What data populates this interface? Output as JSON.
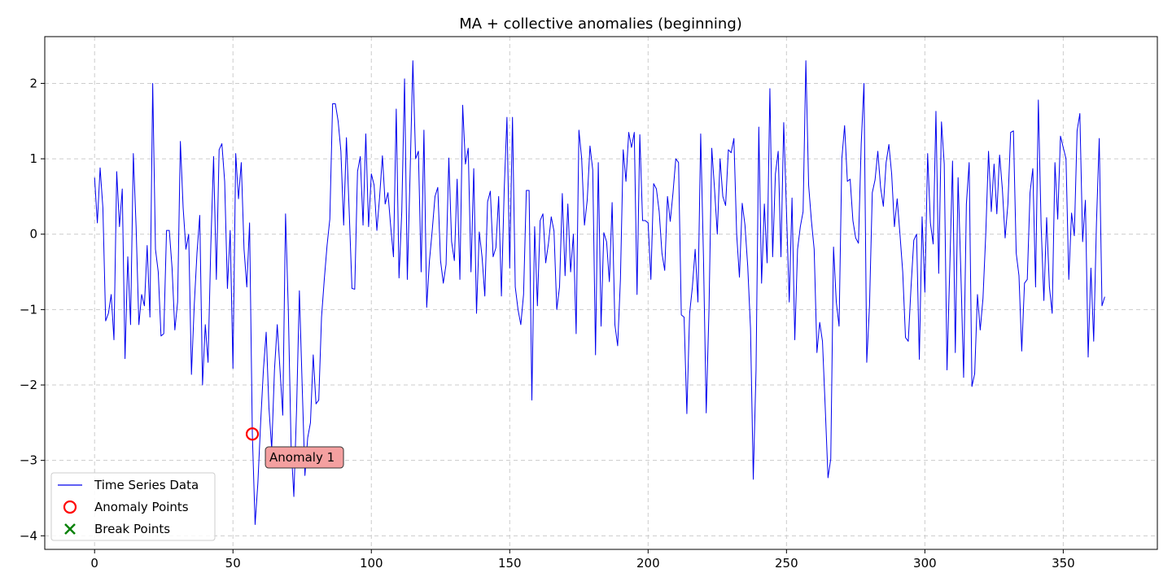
{
  "chart_data": {
    "type": "line",
    "title": "MA + collective anomalies (beginning)",
    "xlabel": "",
    "ylabel": "",
    "xlim": [
      -18,
      384
    ],
    "ylim": [
      -4.18,
      2.62
    ],
    "xticks": [
      0,
      50,
      100,
      150,
      200,
      250,
      300,
      350
    ],
    "xtick_labels": [
      "0",
      "50",
      "100",
      "150",
      "200",
      "250",
      "300",
      "350"
    ],
    "yticks": [
      -4,
      -3,
      -2,
      -1,
      0,
      1,
      2
    ],
    "ytick_labels": [
      "−4",
      "−3",
      "−2",
      "−1",
      "0",
      "1",
      "2"
    ],
    "grid": true,
    "legend_position": "lower-left",
    "series": [
      {
        "name": "Time Series Data",
        "color": "#0000ee",
        "x": [
          0,
          1,
          2,
          3,
          4,
          5,
          6,
          7,
          8,
          9,
          10,
          11,
          12,
          13,
          14,
          15,
          16,
          17,
          18,
          19,
          20,
          21,
          22,
          23,
          24,
          25,
          26,
          27,
          28,
          29,
          30,
          31,
          32,
          33,
          34,
          35,
          36,
          37,
          38,
          39,
          40,
          41,
          42,
          43,
          44,
          45,
          46,
          47,
          48,
          49,
          50,
          51,
          52,
          53,
          54,
          55,
          56,
          57,
          58,
          59,
          60,
          61,
          62,
          63,
          64,
          65,
          66,
          67,
          68,
          69,
          70,
          71,
          72,
          73,
          74,
          75,
          76,
          77,
          78,
          79,
          80,
          81,
          82,
          83,
          84,
          85,
          86,
          87,
          88,
          89,
          90,
          91,
          92,
          93,
          94,
          95,
          96,
          97,
          98,
          99,
          100,
          101,
          102,
          103,
          104,
          105,
          106,
          107,
          108,
          109,
          110,
          111,
          112,
          113,
          114,
          115,
          116,
          117,
          118,
          119,
          120,
          121,
          122,
          123,
          124,
          125,
          126,
          127,
          128,
          129,
          130,
          131,
          132,
          133,
          134,
          135,
          136,
          137,
          138,
          139,
          140,
          141,
          142,
          143,
          144,
          145,
          146,
          147,
          148,
          149,
          150,
          151,
          152,
          153,
          154,
          155,
          156,
          157,
          158,
          159,
          160,
          161,
          162,
          163,
          164,
          165,
          166,
          167,
          168,
          169,
          170,
          171,
          172,
          173,
          174,
          175,
          176,
          177,
          178,
          179,
          180,
          181,
          182,
          183,
          184,
          185,
          186,
          187,
          188,
          189,
          190,
          191,
          192,
          193,
          194,
          195,
          196,
          197,
          198,
          199,
          200,
          201,
          202,
          203,
          204,
          205,
          206,
          207,
          208,
          209,
          210,
          211,
          212,
          213,
          214,
          215,
          216,
          217,
          218,
          219,
          220,
          221,
          222,
          223,
          224,
          225,
          226,
          227,
          228,
          229,
          230,
          231,
          232,
          233,
          234,
          235,
          236,
          237,
          238,
          239,
          240,
          241,
          242,
          243,
          244,
          245,
          246,
          247,
          248,
          249,
          250,
          251,
          252,
          253,
          254,
          255,
          256,
          257,
          258,
          259,
          260,
          261,
          262,
          263,
          264,
          265,
          266,
          267,
          268,
          269,
          270,
          271,
          272,
          273,
          274,
          275,
          276,
          277,
          278,
          279,
          280,
          281,
          282,
          283,
          284,
          285,
          286,
          287,
          288,
          289,
          290,
          291,
          292,
          293,
          294,
          295,
          296,
          297,
          298,
          299,
          300,
          301,
          302,
          303,
          304,
          305,
          306,
          307,
          308,
          309,
          310,
          311,
          312,
          313,
          314,
          315,
          316,
          317,
          318,
          319,
          320,
          321,
          322,
          323,
          324,
          325,
          326,
          327,
          328,
          329,
          330,
          331,
          332,
          333,
          334,
          335,
          336,
          337,
          338,
          339,
          340,
          341,
          342,
          343,
          344,
          345,
          346,
          347,
          348,
          349,
          350,
          351,
          352,
          353,
          354,
          355,
          356,
          357,
          358,
          359,
          360,
          361,
          362,
          363,
          364,
          365
        ],
        "values": [
          0.75,
          0.15,
          0.88,
          0.35,
          -1.15,
          -1.05,
          -0.8,
          -1.4,
          0.83,
          0.1,
          0.6,
          -1.65,
          -0.3,
          -1.2,
          1.07,
          0.1,
          -1.2,
          -0.8,
          -0.95,
          -0.15,
          -1.1,
          2.0,
          -0.2,
          -0.5,
          -1.35,
          -1.32,
          0.05,
          0.05,
          -0.45,
          -1.27,
          -0.9,
          1.23,
          0.35,
          -0.2,
          0.0,
          -1.86,
          -0.95,
          -0.25,
          0.25,
          -2.0,
          -1.2,
          -1.7,
          -0.15,
          1.03,
          -0.6,
          1.12,
          1.2,
          0.7,
          -0.72,
          0.05,
          -1.78,
          1.07,
          0.47,
          0.95,
          -0.2,
          -0.7,
          0.15,
          -2.65,
          -3.85,
          -3.3,
          -2.5,
          -1.8,
          -1.3,
          -2.3,
          -2.85,
          -1.8,
          -1.2,
          -1.8,
          -2.4,
          0.27,
          -1.0,
          -2.8,
          -3.48,
          -2.3,
          -0.75,
          -2.0,
          -3.2,
          -2.7,
          -2.5,
          -1.6,
          -2.25,
          -2.2,
          -1.1,
          -0.6,
          -0.15,
          0.2,
          1.73,
          1.73,
          1.5,
          1.1,
          0.12,
          1.28,
          0.3,
          -0.72,
          -0.73,
          0.83,
          1.03,
          0.12,
          1.33,
          0.1,
          0.8,
          0.65,
          0.05,
          0.5,
          1.04,
          0.4,
          0.55,
          0.1,
          -0.3,
          1.66,
          -0.58,
          0.3,
          2.06,
          -0.6,
          0.8,
          2.3,
          1.0,
          1.1,
          -0.5,
          1.38,
          -0.97,
          -0.35,
          0.05,
          0.5,
          0.62,
          -0.35,
          -0.65,
          -0.4,
          1.01,
          -0.1,
          -0.35,
          0.73,
          -0.6,
          1.71,
          0.93,
          1.14,
          -0.5,
          0.87,
          -1.05,
          0.03,
          -0.3,
          -0.82,
          0.43,
          0.57,
          -0.3,
          -0.18,
          0.5,
          -0.82,
          0.58,
          1.55,
          -0.45,
          1.55,
          -0.7,
          -1.0,
          -1.2,
          -0.8,
          0.58,
          0.58,
          -2.2,
          0.1,
          -0.95,
          0.18,
          0.27,
          -0.38,
          -0.12,
          0.23,
          0.04,
          -1.0,
          -0.7,
          0.54,
          -0.55,
          0.4,
          -0.5,
          0.0,
          -1.32,
          1.38,
          1.0,
          0.12,
          0.45,
          1.17,
          0.85,
          -1.6,
          0.95,
          -1.22,
          0.02,
          -0.1,
          -0.63,
          0.42,
          -1.2,
          -1.48,
          -0.6,
          1.12,
          0.7,
          1.35,
          1.15,
          1.35,
          -0.8,
          1.32,
          0.18,
          0.18,
          0.15,
          -0.6,
          0.67,
          0.6,
          0.3,
          -0.25,
          -0.48,
          0.5,
          0.17,
          0.55,
          1.0,
          0.95,
          -1.07,
          -1.1,
          -2.38,
          -1.05,
          -0.7,
          -0.2,
          -0.9,
          1.33,
          -0.3,
          -2.37,
          -1.0,
          1.14,
          0.6,
          0.0,
          1.0,
          0.5,
          0.38,
          1.12,
          1.08,
          1.27,
          0.0,
          -0.57,
          0.41,
          0.12,
          -0.43,
          -1.25,
          -3.25,
          -1.8,
          1.42,
          -0.65,
          0.4,
          -0.38,
          1.93,
          -0.3,
          0.8,
          1.1,
          -0.3,
          1.48,
          0.3,
          -0.9,
          0.48,
          -1.4,
          -0.2,
          0.1,
          0.3,
          2.3,
          0.65,
          0.18,
          -0.2,
          -1.57,
          -1.17,
          -1.42,
          -2.3,
          -3.23,
          -2.98,
          -0.17,
          -0.9,
          -1.22,
          1.0,
          1.44,
          0.7,
          0.73,
          0.18,
          -0.05,
          -0.12,
          1.2,
          2.0,
          -1.7,
          -0.95,
          0.55,
          0.72,
          1.1,
          0.62,
          0.37,
          0.95,
          1.19,
          0.8,
          0.1,
          0.47,
          0.0,
          -0.5,
          -1.37,
          -1.42,
          -0.7,
          -0.08,
          0.0,
          -1.66,
          0.23,
          -0.77,
          1.07,
          0.15,
          -0.13,
          1.63,
          -0.52,
          1.49,
          0.93,
          -1.8,
          -0.45,
          0.97,
          -1.57,
          0.75,
          -0.5,
          -1.9,
          0.4,
          0.95,
          -2.02,
          -1.85,
          -0.8,
          -1.27,
          -0.85,
          0.0,
          1.1,
          0.3,
          0.93,
          0.27,
          1.05,
          0.6,
          -0.05,
          0.4,
          1.35,
          1.37,
          -0.25,
          -0.55,
          -1.55,
          -0.65,
          -0.6,
          0.55,
          0.87,
          -0.7,
          1.78,
          0.12,
          -0.88,
          0.22,
          -0.7,
          -1.05,
          0.95,
          0.2,
          1.3,
          1.15,
          1.0,
          -0.6,
          0.28,
          -0.02,
          1.37,
          1.6,
          -0.1,
          0.45,
          -1.63,
          -0.45,
          -1.42,
          0.15,
          1.27,
          -0.95,
          -0.83
        ]
      }
    ],
    "anomaly_points": [
      {
        "x": 57,
        "y": -2.65
      }
    ],
    "break_points": [],
    "annotations": [
      {
        "text": "Anomaly 1",
        "x": 62,
        "y": -2.95
      }
    ],
    "legend": [
      {
        "label": "Time Series Data",
        "marker": "line",
        "color": "#0000ee"
      },
      {
        "label": "Anomaly Points",
        "marker": "circle",
        "color": "#ff0000"
      },
      {
        "label": "Break Points",
        "marker": "x",
        "color": "#008000"
      }
    ],
    "colors": {
      "line": "#0000ee",
      "anomaly": "#ff0000",
      "break": "#008000",
      "annotation_fill": "#f4a0a0",
      "grid": "#cccccc"
    }
  }
}
